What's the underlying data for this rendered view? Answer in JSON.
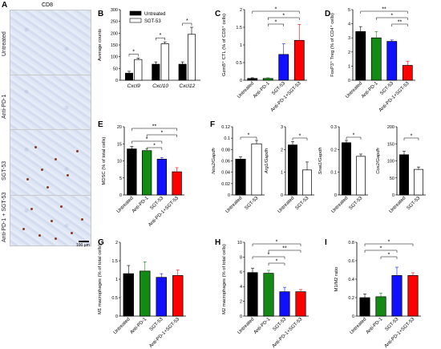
{
  "panel_letters": [
    "A",
    "B",
    "C",
    "D",
    "E",
    "F",
    "G",
    "H",
    "I"
  ],
  "panel_a": {
    "stain": "CD8",
    "rows": [
      "Untreated",
      "Anti-PD-1",
      "SGT-53",
      "Anti-PD-1 + SGT-53"
    ],
    "scale_bar": "100 µm"
  },
  "colors": {
    "black": "#000000",
    "green": "#138a13",
    "blue": "#1010ff",
    "red": "#ff0000",
    "white": "#ffffff"
  },
  "chart_data": [
    {
      "id": "B",
      "type": "bar",
      "categories": [
        "Cxcl9",
        "Cxcl10",
        "Cxcl12"
      ],
      "series": [
        {
          "name": "Untreated",
          "values": [
            30,
            68,
            68
          ],
          "errors": [
            8,
            10,
            10
          ]
        },
        {
          "name": "SGT-53",
          "values": [
            88,
            155,
            195
          ],
          "errors": [
            6,
            8,
            30
          ]
        }
      ],
      "ylabel": "Average counts",
      "ylim": [
        0,
        300
      ],
      "yticks": [
        "0",
        "50",
        "100",
        "150",
        "200",
        "250",
        "300"
      ],
      "legend": "top-left",
      "significance": [
        {
          "between": [
            0,
            0
          ],
          "label": "*"
        },
        {
          "between": [
            1,
            1
          ],
          "label": "*"
        },
        {
          "between": [
            2,
            2
          ],
          "label": "*"
        }
      ]
    },
    {
      "id": "C",
      "type": "bar",
      "categories": [
        "Untreated",
        "Anti-PD-1",
        "SGT-53",
        "Anti-PD-1+SGT-53"
      ],
      "values": [
        0.05,
        0.05,
        0.73,
        1.13
      ],
      "errors": [
        0.02,
        0.02,
        0.3,
        0.45
      ],
      "colors": [
        "#000000",
        "#138a13",
        "#1010ff",
        "#ff0000"
      ],
      "ylabel": "GzmB⁺ CTL (% of CD8⁺ cells)",
      "ylim": [
        0,
        2
      ],
      "yticks": [
        "0",
        "0.5",
        "1",
        "1.5",
        "2"
      ],
      "significance": [
        {
          "between": [
            0,
            3
          ],
          "label": "*"
        },
        {
          "between": [
            1,
            3
          ],
          "label": "*"
        },
        {
          "between": [
            1,
            2
          ],
          "label": "*"
        }
      ]
    },
    {
      "id": "D",
      "type": "bar",
      "categories": [
        "Untreated",
        "Anti-PD-1",
        "SGT-53",
        "Anti-PD-1+SGT-53"
      ],
      "values": [
        3.45,
        3.0,
        2.75,
        1.05
      ],
      "errors": [
        0.35,
        0.45,
        0.1,
        0.3
      ],
      "colors": [
        "#000000",
        "#138a13",
        "#1010ff",
        "#ff0000"
      ],
      "ylabel": "FoxP3⁺ Treg (% of CD4⁺ cells)",
      "ylim": [
        0,
        5
      ],
      "yticks": [
        "0",
        "1",
        "2",
        "3",
        "4",
        "5"
      ],
      "significance": [
        {
          "between": [
            0,
            3
          ],
          "label": "**"
        },
        {
          "between": [
            1,
            3
          ],
          "label": "*"
        },
        {
          "between": [
            2,
            3
          ],
          "label": "**"
        }
      ]
    },
    {
      "id": "E",
      "type": "bar",
      "categories": [
        "Untreated",
        "Anti-PD-1",
        "SGT-53",
        "Anti-PD-1+SGT-53"
      ],
      "values": [
        13.5,
        13.0,
        10.5,
        6.8
      ],
      "errors": [
        0.7,
        0.6,
        0.5,
        1.2
      ],
      "colors": [
        "#000000",
        "#138a13",
        "#1010ff",
        "#ff0000"
      ],
      "ylabel": "MDSC (% of total cells)",
      "ylim": [
        0,
        20
      ],
      "yticks": [
        "0",
        "5",
        "10",
        "15",
        "20"
      ],
      "significance": [
        {
          "between": [
            0,
            3
          ],
          "label": "**"
        },
        {
          "between": [
            1,
            3
          ],
          "label": "*"
        },
        {
          "between": [
            0,
            2
          ],
          "label": "*"
        },
        {
          "between": [
            1,
            2
          ],
          "label": "*"
        }
      ]
    },
    {
      "id": "F1",
      "type": "bar",
      "categories": [
        "Untreated",
        "SGT-53"
      ],
      "values": [
        0.063,
        0.09
      ],
      "errors": [
        0.004,
        0.006
      ],
      "colors": [
        "#000000",
        "#ffffff"
      ],
      "ylabel": "Nos2/Gapdh",
      "ylim": [
        0,
        0.12
      ],
      "yticks": [
        "0",
        "0.02",
        "0.04",
        "0.06",
        "0.08",
        "0.1",
        "0.12"
      ],
      "significance": [
        {
          "between": [
            0,
            1
          ],
          "label": "*"
        }
      ]
    },
    {
      "id": "F2",
      "type": "bar",
      "categories": [
        "Untreated",
        "SGT-53"
      ],
      "values": [
        2.2,
        1.1
      ],
      "errors": [
        0.15,
        0.35
      ],
      "colors": [
        "#000000",
        "#ffffff"
      ],
      "ylabel": "Arg1/Gapdh",
      "ylim": [
        0,
        3
      ],
      "yticks": [
        "0",
        "1",
        "2",
        "3"
      ],
      "significance": [
        {
          "between": [
            0,
            1
          ],
          "label": "*"
        }
      ]
    },
    {
      "id": "F3",
      "type": "bar",
      "categories": [
        "Untreated",
        "SGT-53"
      ],
      "values": [
        0.23,
        0.17
      ],
      "errors": [
        0.01,
        0.01
      ],
      "colors": [
        "#000000",
        "#ffffff"
      ],
      "ylabel": "Snai1/Gapdh",
      "ylim": [
        0,
        0.3
      ],
      "yticks": [
        "0",
        "0.1",
        "0.2",
        "0.3"
      ],
      "significance": [
        {
          "between": [
            0,
            1
          ],
          "label": "*"
        }
      ]
    },
    {
      "id": "F4",
      "type": "bar",
      "categories": [
        "Untreated",
        "SGT-53"
      ],
      "values": [
        118,
        75
      ],
      "errors": [
        10,
        7
      ],
      "colors": [
        "#000000",
        "#ffffff"
      ],
      "ylabel": "Cox2/Gapdh",
      "ylim": [
        0,
        200
      ],
      "yticks": [
        "0",
        "50",
        "100",
        "150",
        "200"
      ],
      "significance": [
        {
          "between": [
            0,
            1
          ],
          "label": "*"
        }
      ]
    },
    {
      "id": "G",
      "type": "bar",
      "categories": [
        "Untreated",
        "Anti-PD-1",
        "SGT-53",
        "Anti-PD-1+SGT-53"
      ],
      "values": [
        1.15,
        1.22,
        1.05,
        1.1
      ],
      "errors": [
        0.22,
        0.25,
        0.1,
        0.15
      ],
      "colors": [
        "#000000",
        "#138a13",
        "#1010ff",
        "#ff0000"
      ],
      "ylabel": "M1 macrophages (% of total cells)",
      "ylim": [
        0,
        2
      ],
      "yticks": [
        "0",
        "0.5",
        "1",
        "1.5",
        "2"
      ],
      "significance": []
    },
    {
      "id": "H",
      "type": "bar",
      "categories": [
        "Untreated",
        "Anti-PD-1",
        "SGT-53",
        "Anti-PD-1+SGT-53"
      ],
      "values": [
        5.9,
        5.8,
        3.3,
        3.3
      ],
      "errors": [
        0.6,
        0.4,
        0.6,
        0.3
      ],
      "colors": [
        "#000000",
        "#138a13",
        "#1010ff",
        "#ff0000"
      ],
      "ylabel": "M2 macrophages (% of total cells)",
      "ylim": [
        0,
        10
      ],
      "yticks": [
        "0",
        "2",
        "4",
        "6",
        "8",
        "10"
      ],
      "significance": [
        {
          "between": [
            0,
            3
          ],
          "label": "*"
        },
        {
          "between": [
            1,
            3
          ],
          "label": "**"
        },
        {
          "between": [
            0,
            2
          ],
          "label": "*"
        },
        {
          "between": [
            1,
            2
          ],
          "label": "*"
        }
      ]
    },
    {
      "id": "I",
      "type": "bar",
      "categories": [
        "Untreated",
        "Anti-PD-1",
        "SGT-53",
        "Anti-PD-1+SGT-53"
      ],
      "values": [
        0.2,
        0.21,
        0.44,
        0.44
      ],
      "errors": [
        0.04,
        0.04,
        0.09,
        0.03
      ],
      "colors": [
        "#000000",
        "#138a13",
        "#1010ff",
        "#ff0000"
      ],
      "ylabel": "M1/M2 ratio",
      "ylim": [
        0,
        0.8
      ],
      "yticks": [
        "0",
        "0.2",
        "0.4",
        "0.6",
        "0.8"
      ],
      "significance": [
        {
          "between": [
            0,
            3
          ],
          "label": "*"
        },
        {
          "between": [
            0,
            2
          ],
          "label": "*"
        },
        {
          "between": [
            1,
            2
          ],
          "label": "*"
        }
      ]
    }
  ]
}
